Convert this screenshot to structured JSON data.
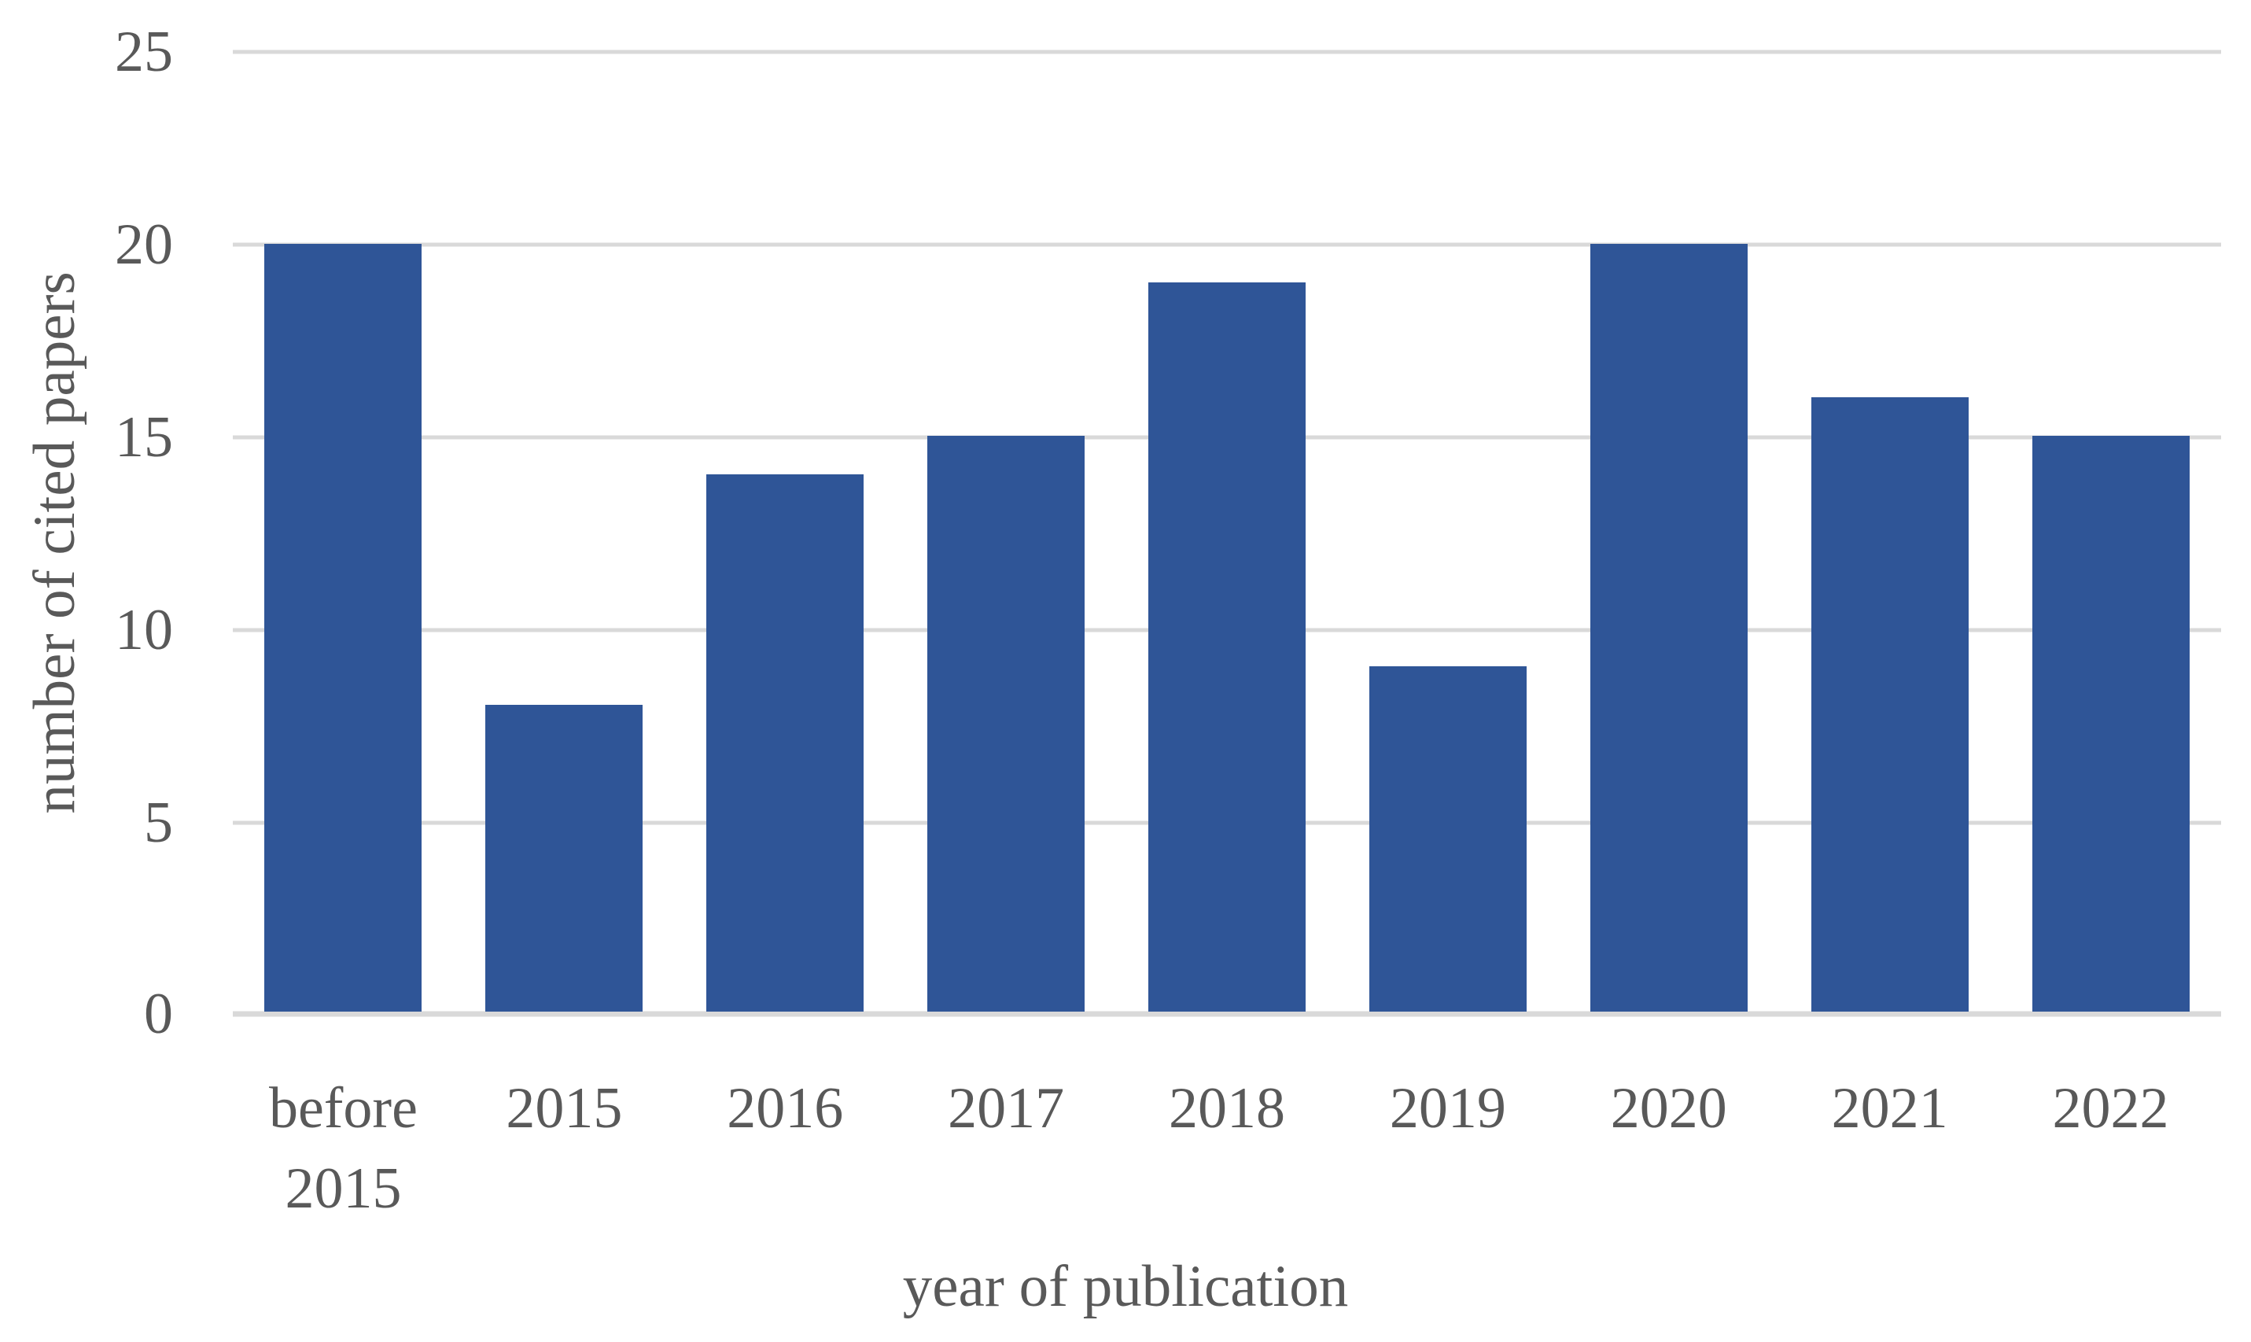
{
  "chart_data": {
    "type": "bar",
    "title": "",
    "categories": [
      "before 2015",
      "2015",
      "2016",
      "2017",
      "2018",
      "2019",
      "2020",
      "2021",
      "2022"
    ],
    "values": [
      20,
      8,
      14,
      15,
      19,
      9,
      20,
      16,
      15
    ],
    "xlabel": "year of publication",
    "ylabel": "number of cited papers",
    "ylim": [
      0,
      25
    ],
    "yticks": [
      0,
      5,
      10,
      15,
      20,
      25
    ],
    "grid": true,
    "legend": false,
    "colors": {
      "bar": "#2F5597",
      "text": "#595959",
      "gridline": "#D9D9D9",
      "axis_line": "#D9D9D9",
      "background": "#FFFFFF"
    }
  }
}
